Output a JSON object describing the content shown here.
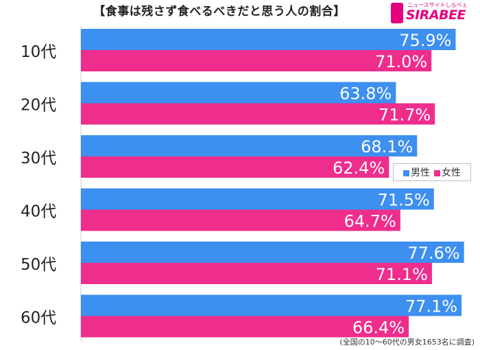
{
  "title": "【食事は残さず食べるべきだと思う人の割合】",
  "logo": {
    "text": "SIRABEE",
    "subtext": "ニュースサイトしらべぇ"
  },
  "footnote": "(全国の10〜60代の男女1653名に調査)",
  "colors": {
    "male": "#3d8ff0",
    "female": "#ee2d8c",
    "axis": "#cccccc"
  },
  "chart_data": {
    "type": "bar",
    "orientation": "horizontal",
    "categories": [
      "10代",
      "20代",
      "30代",
      "40代",
      "50代",
      "60代"
    ],
    "series": [
      {
        "name": "男性",
        "values": [
          75.9,
          63.8,
          68.1,
          71.5,
          77.6,
          77.1
        ]
      },
      {
        "name": "女性",
        "values": [
          71.0,
          71.7,
          62.4,
          64.7,
          71.1,
          66.4
        ]
      }
    ],
    "value_suffix": "%",
    "xlim": [
      0,
      100
    ],
    "legend": {
      "position": "right",
      "items": [
        "男性",
        "女性"
      ]
    }
  }
}
